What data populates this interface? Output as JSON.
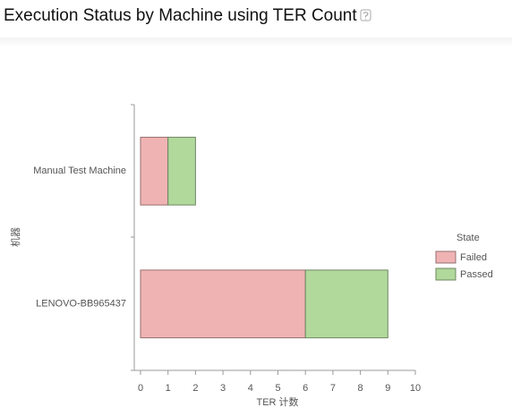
{
  "chart_data": {
    "type": "bar",
    "orientation": "horizontal",
    "stacked": true,
    "title": "Execution Status by Machine using TER Count",
    "x_label": "TER 计数",
    "y_label": "机器",
    "categories": [
      "Manual Test Machine",
      "LENOVO-BB965437"
    ],
    "series": [
      {
        "name": "Failed",
        "color": "#f0b3b3",
        "values": [
          1,
          6
        ]
      },
      {
        "name": "Passed",
        "color": "#b1d99c",
        "values": [
          1,
          3
        ]
      }
    ],
    "xlim": [
      0,
      10
    ],
    "xticks": [
      0,
      1,
      2,
      3,
      4,
      5,
      6,
      7,
      8,
      9,
      10
    ],
    "grid": false,
    "legend_title": "State",
    "legend_position": "right"
  }
}
